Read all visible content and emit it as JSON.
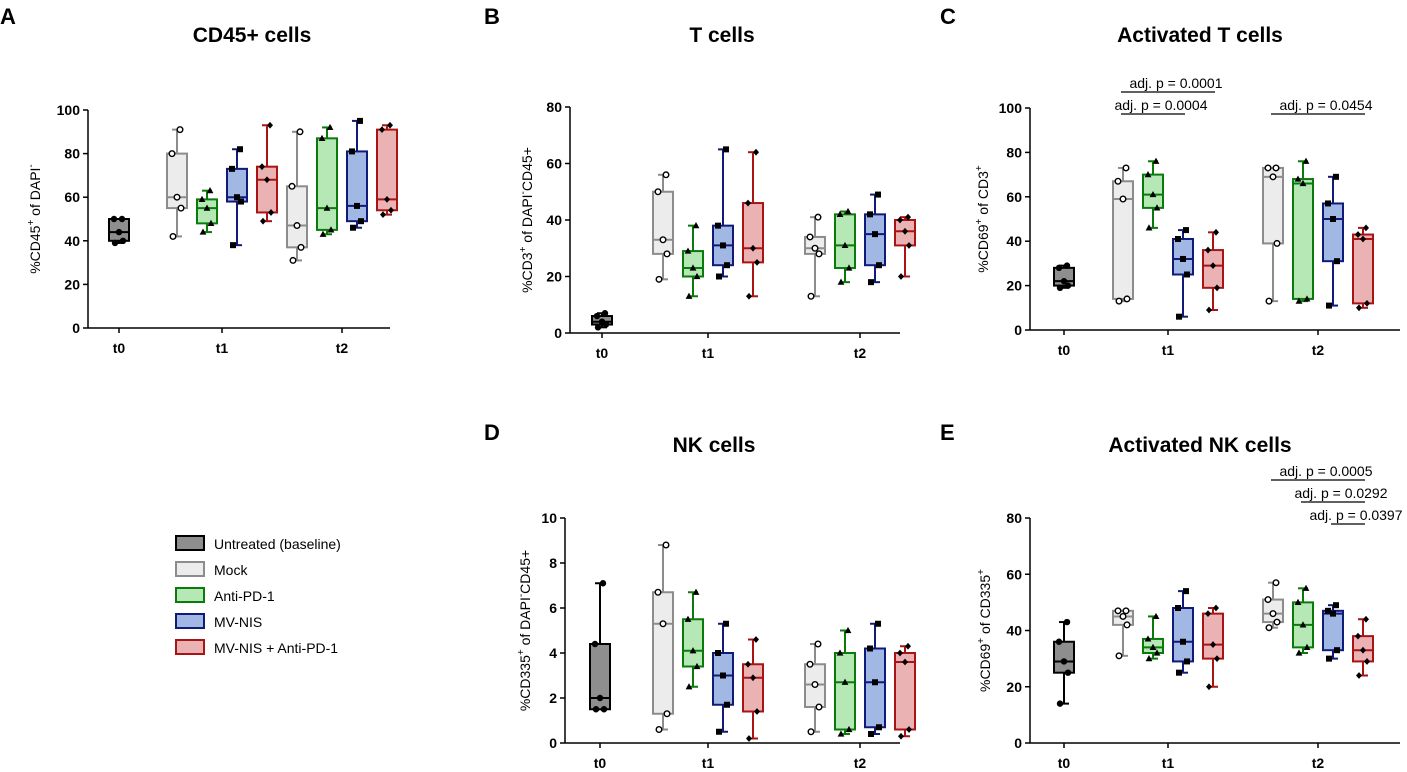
{
  "colors": {
    "Untreated (baseline)": {
      "fill": "#8e8e8e",
      "stroke": "#000000"
    },
    "Mock": {
      "fill": "#ececec",
      "stroke": "#8c8c8c"
    },
    "Anti-PD-1": {
      "fill": "#b5e8b5",
      "stroke": "#0a7a0a"
    },
    "MV-NIS": {
      "fill": "#a2b8e4",
      "stroke": "#101a78"
    },
    "MV-NIS + Anti-PD-1": {
      "fill": "#eab2b2",
      "stroke": "#a81414"
    }
  },
  "legend": {
    "entries": [
      "Untreated (baseline)",
      "Mock",
      "Anti-PD-1",
      "MV-NIS",
      "MV-NIS + Anti-PD-1"
    ]
  },
  "chart_data": [
    {
      "id": "A",
      "panel_label": "A",
      "type": "box",
      "title": "CD45+ cells",
      "ylabel": "%CD45⁺ of DAPI⁻",
      "ylim": [
        0,
        100
      ],
      "yticks": [
        0,
        20,
        40,
        60,
        80,
        100
      ],
      "xgroups": [
        "t0",
        "t1",
        "t2"
      ],
      "boxes": [
        {
          "group": "t0",
          "series": "Untreated (baseline)",
          "min": 39,
          "q1": 40,
          "median": 44,
          "q3": 50,
          "max": 50
        },
        {
          "group": "t1",
          "series": "Mock",
          "min": 42,
          "q1": 55,
          "median": 60,
          "q3": 80,
          "max": 91
        },
        {
          "group": "t1",
          "series": "Anti-PD-1",
          "min": 44,
          "q1": 48,
          "median": 55,
          "q3": 59,
          "max": 63
        },
        {
          "group": "t1",
          "series": "MV-NIS",
          "min": 38,
          "q1": 58,
          "median": 60,
          "q3": 73,
          "max": 82
        },
        {
          "group": "t1",
          "series": "MV-NIS + Anti-PD-1",
          "min": 49,
          "q1": 53,
          "median": 68,
          "q3": 74,
          "max": 93
        },
        {
          "group": "t2",
          "series": "Mock",
          "min": 31,
          "q1": 37,
          "median": 47,
          "q3": 65,
          "max": 90
        },
        {
          "group": "t2",
          "series": "Anti-PD-1",
          "min": 43,
          "q1": 45,
          "median": 55,
          "q3": 87,
          "max": 92
        },
        {
          "group": "t2",
          "series": "MV-NIS",
          "min": 46,
          "q1": 49,
          "median": 56,
          "q3": 81,
          "max": 95
        },
        {
          "group": "t2",
          "series": "MV-NIS + Anti-PD-1",
          "min": 52,
          "q1": 54,
          "median": 59,
          "q3": 91,
          "max": 93
        }
      ],
      "annotations": []
    },
    {
      "id": "B",
      "panel_label": "B",
      "type": "box",
      "title": "T cells",
      "ylabel": "%CD3⁺ of DAPI⁻CD45+",
      "ylim": [
        0,
        80
      ],
      "yticks": [
        0,
        20,
        40,
        60,
        80
      ],
      "xgroups": [
        "t0",
        "t1",
        "t2"
      ],
      "boxes": [
        {
          "group": "t0",
          "series": "Untreated (baseline)",
          "min": 2,
          "q1": 3,
          "median": 4,
          "q3": 6,
          "max": 7
        },
        {
          "group": "t1",
          "series": "Mock",
          "min": 19,
          "q1": 28,
          "median": 33,
          "q3": 50,
          "max": 56
        },
        {
          "group": "t1",
          "series": "Anti-PD-1",
          "min": 13,
          "q1": 20,
          "median": 23,
          "q3": 29,
          "max": 38
        },
        {
          "group": "t1",
          "series": "MV-NIS",
          "min": 20,
          "q1": 24,
          "median": 31,
          "q3": 38,
          "max": 65
        },
        {
          "group": "t1",
          "series": "MV-NIS + Anti-PD-1",
          "min": 13,
          "q1": 25,
          "median": 30,
          "q3": 46,
          "max": 64
        },
        {
          "group": "t2",
          "series": "Mock",
          "min": 13,
          "q1": 28,
          "median": 30,
          "q3": 34,
          "max": 41
        },
        {
          "group": "t2",
          "series": "Anti-PD-1",
          "min": 18,
          "q1": 23,
          "median": 31,
          "q3": 42,
          "max": 43
        },
        {
          "group": "t2",
          "series": "MV-NIS",
          "min": 18,
          "q1": 24,
          "median": 35,
          "q3": 42,
          "max": 49
        },
        {
          "group": "t2",
          "series": "MV-NIS + Anti-PD-1",
          "min": 20,
          "q1": 31,
          "median": 36,
          "q3": 40,
          "max": 41
        }
      ],
      "annotations": []
    },
    {
      "id": "C",
      "panel_label": "C",
      "type": "box",
      "title": "Activated T cells",
      "ylabel": "%CD69⁺ of CD3⁺",
      "ylim": [
        0,
        100
      ],
      "yticks": [
        0,
        20,
        40,
        60,
        80,
        100
      ],
      "xgroups": [
        "t0",
        "t1",
        "t2"
      ],
      "boxes": [
        {
          "group": "t0",
          "series": "Untreated (baseline)",
          "min": 19,
          "q1": 20,
          "median": 22,
          "q3": 28,
          "max": 29
        },
        {
          "group": "t1",
          "series": "Mock",
          "min": 13,
          "q1": 14,
          "median": 59,
          "q3": 67,
          "max": 73
        },
        {
          "group": "t1",
          "series": "Anti-PD-1",
          "min": 46,
          "q1": 55,
          "median": 61,
          "q3": 70,
          "max": 76
        },
        {
          "group": "t1",
          "series": "MV-NIS",
          "min": 6,
          "q1": 25,
          "median": 32,
          "q3": 41,
          "max": 45
        },
        {
          "group": "t1",
          "series": "MV-NIS + Anti-PD-1",
          "min": 9,
          "q1": 19,
          "median": 29,
          "q3": 36,
          "max": 44
        },
        {
          "group": "t2",
          "series": "Mock",
          "min": 13,
          "q1": 39,
          "median": 69,
          "q3": 73,
          "max": 73
        },
        {
          "group": "t2",
          "series": "Anti-PD-1",
          "min": 13,
          "q1": 14,
          "median": 66,
          "q3": 68,
          "max": 76
        },
        {
          "group": "t2",
          "series": "MV-NIS",
          "min": 11,
          "q1": 31,
          "median": 50,
          "q3": 57,
          "max": 69
        },
        {
          "group": "t2",
          "series": "MV-NIS + Anti-PD-1",
          "min": 10,
          "q1": 12,
          "median": 41,
          "q3": 43,
          "max": 46
        }
      ],
      "annotations": [
        {
          "text": "adj. p = 0.0001",
          "group": "t1",
          "from": "Mock",
          "to": "MV-NIS + Anti-PD-1",
          "level": 2
        },
        {
          "text": "adj. p = 0.0004",
          "group": "t1",
          "from": "Mock",
          "to": "MV-NIS",
          "level": 1
        },
        {
          "text": "adj. p = 0.0454",
          "group": "t2",
          "from": "Mock",
          "to": "MV-NIS + Anti-PD-1",
          "level": 1
        }
      ]
    },
    {
      "id": "D",
      "panel_label": "D",
      "type": "box",
      "title": "NK cells",
      "ylabel": "%CD335⁺ of DAPI⁻CD45+",
      "ylim": [
        0,
        10
      ],
      "yticks": [
        0,
        2,
        4,
        6,
        8,
        10
      ],
      "xgroups": [
        "t0",
        "t1",
        "t2"
      ],
      "boxes": [
        {
          "group": "t0",
          "series": "Untreated (baseline)",
          "min": 1.5,
          "q1": 1.5,
          "median": 2,
          "q3": 4.4,
          "max": 7.1
        },
        {
          "group": "t1",
          "series": "Mock",
          "min": 0.6,
          "q1": 1.3,
          "median": 5.3,
          "q3": 6.7,
          "max": 8.8
        },
        {
          "group": "t1",
          "series": "Anti-PD-1",
          "min": 2.5,
          "q1": 3.4,
          "median": 4.1,
          "q3": 5.5,
          "max": 6.7
        },
        {
          "group": "t1",
          "series": "MV-NIS",
          "min": 0.5,
          "q1": 1.7,
          "median": 3,
          "q3": 4,
          "max": 5.3
        },
        {
          "group": "t1",
          "series": "MV-NIS + Anti-PD-1",
          "min": 0.2,
          "q1": 1.4,
          "median": 2.9,
          "q3": 3.5,
          "max": 4.6
        },
        {
          "group": "t2",
          "series": "Mock",
          "min": 0.5,
          "q1": 1.6,
          "median": 2.6,
          "q3": 3.5,
          "max": 4.4
        },
        {
          "group": "t2",
          "series": "Anti-PD-1",
          "min": 0.4,
          "q1": 0.6,
          "median": 2.7,
          "q3": 4,
          "max": 5
        },
        {
          "group": "t2",
          "series": "MV-NIS",
          "min": 0.4,
          "q1": 0.7,
          "median": 2.7,
          "q3": 4.2,
          "max": 5.3
        },
        {
          "group": "t2",
          "series": "MV-NIS + Anti-PD-1",
          "min": 0.3,
          "q1": 0.6,
          "median": 3.6,
          "q3": 4,
          "max": 4.3
        }
      ],
      "annotations": []
    },
    {
      "id": "E",
      "panel_label": "E",
      "type": "box",
      "title": "Activated NK cells",
      "ylabel": "%CD69⁺ of CD335⁺",
      "ylim": [
        0,
        80
      ],
      "yticks": [
        0,
        20,
        40,
        60,
        80
      ],
      "xgroups": [
        "t0",
        "t1",
        "t2"
      ],
      "boxes": [
        {
          "group": "t0",
          "series": "Untreated (baseline)",
          "min": 14,
          "q1": 25,
          "median": 29,
          "q3": 36,
          "max": 43
        },
        {
          "group": "t1",
          "series": "Mock",
          "min": 31,
          "q1": 42,
          "median": 45,
          "q3": 47,
          "max": 47
        },
        {
          "group": "t1",
          "series": "Anti-PD-1",
          "min": 30,
          "q1": 32,
          "median": 34,
          "q3": 37,
          "max": 45
        },
        {
          "group": "t1",
          "series": "MV-NIS",
          "min": 25,
          "q1": 29,
          "median": 36,
          "q3": 48,
          "max": 54
        },
        {
          "group": "t1",
          "series": "MV-NIS + Anti-PD-1",
          "min": 20,
          "q1": 30,
          "median": 35,
          "q3": 46,
          "max": 48
        },
        {
          "group": "t2",
          "series": "Mock",
          "min": 41,
          "q1": 43,
          "median": 46,
          "q3": 51,
          "max": 57
        },
        {
          "group": "t2",
          "series": "Anti-PD-1",
          "min": 32,
          "q1": 34,
          "median": 42,
          "q3": 50,
          "max": 55
        },
        {
          "group": "t2",
          "series": "MV-NIS",
          "min": 30,
          "q1": 33,
          "median": 46,
          "q3": 47,
          "max": 49
        },
        {
          "group": "t2",
          "series": "MV-NIS + Anti-PD-1",
          "min": 24,
          "q1": 29,
          "median": 33,
          "q3": 38,
          "max": 44
        }
      ],
      "annotations": [
        {
          "text": "adj. p = 0.0005",
          "group": "t2",
          "from": "Mock",
          "to": "MV-NIS + Anti-PD-1",
          "level": 3
        },
        {
          "text": "adj. p = 0.0292",
          "group": "t2",
          "from": "Anti-PD-1",
          "to": "MV-NIS + Anti-PD-1",
          "level": 2
        },
        {
          "text": "adj. p = 0.0397",
          "group": "t2",
          "from": "MV-NIS",
          "to": "MV-NIS + Anti-PD-1",
          "level": 1
        }
      ]
    }
  ]
}
